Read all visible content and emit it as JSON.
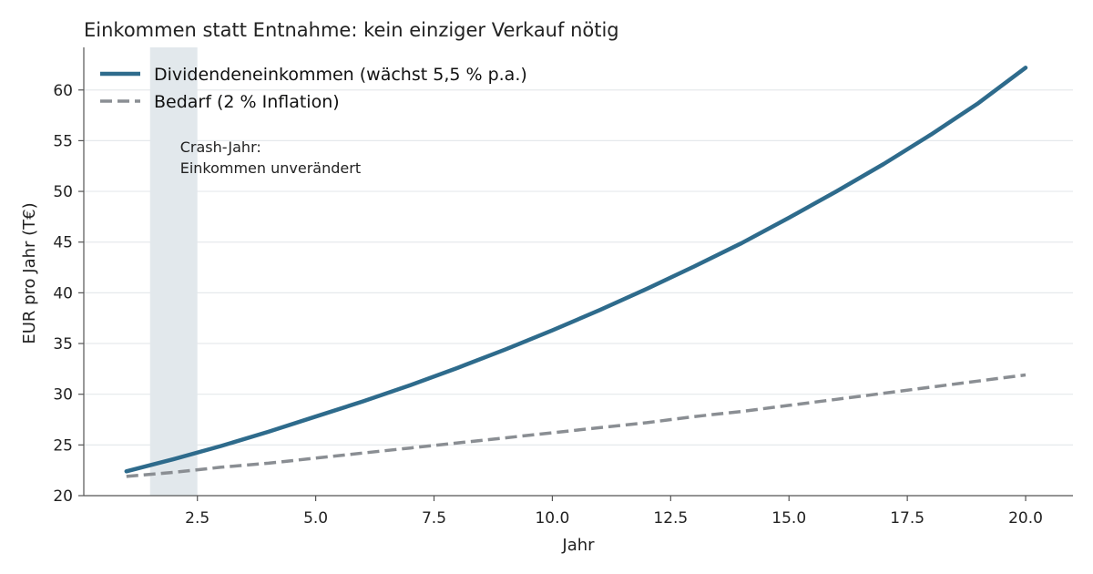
{
  "chart_data": {
    "type": "line",
    "title": "Einkommen statt Entnahme: kein einziger Verkauf nötig",
    "xlabel": "Jahr",
    "ylabel": "EUR pro Jahr (T€)",
    "xlim": [
      0.1,
      21.0
    ],
    "ylim": [
      20,
      64.2
    ],
    "xticks": [
      2.5,
      5.0,
      7.5,
      10.0,
      12.5,
      15.0,
      17.5,
      20.0
    ],
    "xtick_labels": [
      "2.5",
      "5.0",
      "7.5",
      "10.0",
      "12.5",
      "15.0",
      "17.5",
      "20.0"
    ],
    "yticks": [
      20,
      25,
      30,
      35,
      40,
      45,
      50,
      55,
      60
    ],
    "ytick_labels": [
      "20",
      "25",
      "30",
      "35",
      "40",
      "45",
      "50",
      "55",
      "60"
    ],
    "grid": "horizontal",
    "legend_position": "top-left",
    "x": [
      1,
      2,
      3,
      4,
      5,
      6,
      7,
      8,
      9,
      10,
      11,
      12,
      13,
      14,
      15,
      16,
      17,
      18,
      19,
      20
    ],
    "series": [
      {
        "name": "Dividendeneinkommen (wächst 5,5 % p.a.)",
        "color": "#2e6b8c",
        "style": "solid",
        "values": [
          22.4,
          23.6,
          24.9,
          26.3,
          27.8,
          29.3,
          30.9,
          32.6,
          34.4,
          36.3,
          38.3,
          40.4,
          42.6,
          44.9,
          47.4,
          50.0,
          52.7,
          55.6,
          58.7,
          62.2
        ]
      },
      {
        "name": "Bedarf (2 % Inflation)",
        "color": "#8a8e93",
        "style": "dashed",
        "values": [
          21.9,
          22.3,
          22.8,
          23.2,
          23.7,
          24.2,
          24.7,
          25.2,
          25.7,
          26.2,
          26.7,
          27.2,
          27.8,
          28.3,
          28.9,
          29.5,
          30.1,
          30.7,
          31.3,
          31.9
        ]
      }
    ],
    "highlight_band": {
      "x_start": 1.5,
      "x_end": 2.5,
      "color": "#e2e8ec",
      "label_lines": [
        "Crash-Jahr:",
        "Einkommen unverändert"
      ]
    }
  }
}
